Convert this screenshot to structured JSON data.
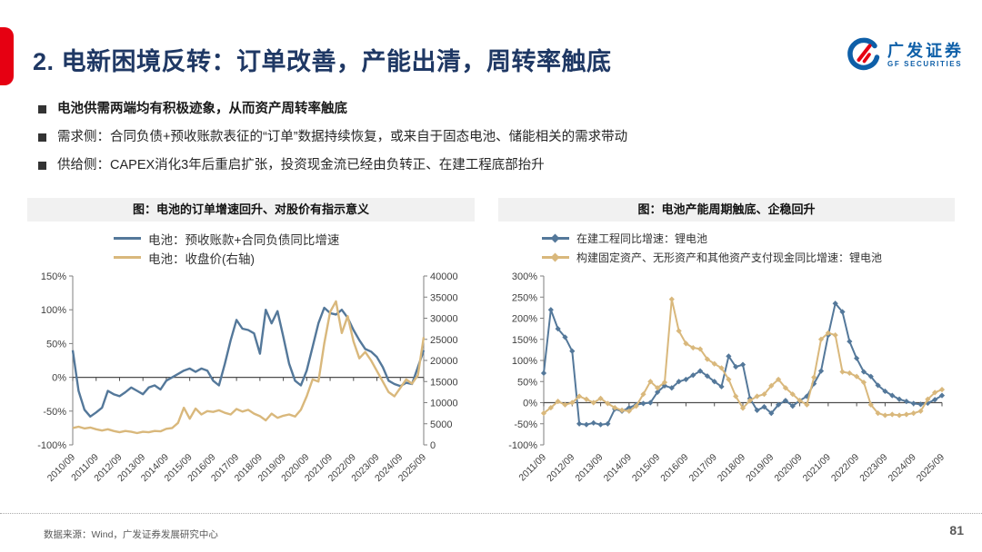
{
  "slide": {
    "title": "2. 电新困境反转：订单改善，产能出清，周转率触底",
    "page_number": "81",
    "source": "数据来源：Wind，广发证券发展研究中心"
  },
  "logo": {
    "cn": "广发证券",
    "en": "GF SECURITIES"
  },
  "bullets": [
    {
      "text": "电池供需两端均有积极迹象，从而资产周转率触底"
    },
    {
      "text": "需求侧：合同负债+预收账款表征的“订单”数据持续恢复，或来自于固态电池、储能相关的需求带动"
    },
    {
      "text": "供给侧：CAPEX消化3年后重启扩张，投资现金流已经由负转正、在建工程底部抬升"
    }
  ],
  "colors": {
    "accent_red": "#E60012",
    "title_blue": "#1F3864",
    "logo_blue": "#0E5FA8",
    "series_blue": "#54789A",
    "series_tan": "#D9B87C"
  },
  "chart_data": [
    {
      "type": "line",
      "title": "图：电池的订单增速回升、对股价有指示意义",
      "points_per_year": 4,
      "x_labels": [
        "2010/09",
        "2011/09",
        "2012/09",
        "2013/09",
        "2014/09",
        "2015/09",
        "2016/09",
        "2017/09",
        "2018/09",
        "2019/09",
        "2020/09",
        "2021/09",
        "2022/09",
        "2023/09",
        "2024/09",
        "2025/09"
      ],
      "left_axis": {
        "min": -100,
        "max": 150,
        "step": 50,
        "tick_labels": [
          "150%",
          "100%",
          "50%",
          "0%",
          "-50%",
          "-100%"
        ]
      },
      "right_axis": {
        "min": 0,
        "max": 40000,
        "step": 5000,
        "tick_labels": [
          "40000",
          "35000",
          "30000",
          "25000",
          "20000",
          "15000",
          "10000",
          "5000",
          "0"
        ]
      },
      "layout": {
        "margins": {
          "l": 50,
          "r": 56,
          "t": 8,
          "b": 62
        },
        "stroke": 2.4,
        "marker": false
      },
      "series": [
        {
          "name": "电池：预收账款+合同负债同比增速",
          "axis": "left",
          "color_key": "series_blue",
          "values": [
            40,
            -20,
            -48,
            -58,
            -52,
            -45,
            -20,
            -25,
            -28,
            -22,
            -15,
            -20,
            -25,
            -15,
            -12,
            -18,
            -5,
            0,
            5,
            10,
            13,
            8,
            13,
            10,
            -5,
            -12,
            20,
            55,
            85,
            72,
            70,
            65,
            35,
            100,
            80,
            98,
            60,
            20,
            -5,
            -12,
            10,
            45,
            80,
            103,
            95,
            93,
            100,
            88,
            70,
            55,
            42,
            38,
            30,
            15,
            -5,
            -10,
            -13,
            -8,
            -10,
            15,
            40
          ]
        },
        {
          "name": "电池：收盘价(右轴)",
          "axis": "right",
          "color_key": "series_tan",
          "values": [
            4000,
            4300,
            3900,
            4100,
            3700,
            3400,
            3700,
            3300,
            3000,
            3300,
            3100,
            2800,
            3100,
            3000,
            3300,
            3200,
            3800,
            4000,
            5200,
            8800,
            6200,
            8600,
            7200,
            8000,
            7800,
            8200,
            7600,
            7200,
            8500,
            7900,
            8300,
            7400,
            6800,
            5800,
            7400,
            6400,
            6900,
            7200,
            6700,
            8300,
            11500,
            15500,
            15000,
            24000,
            31500,
            34000,
            26500,
            30500,
            24500,
            20500,
            22000,
            20000,
            17500,
            15000,
            12500,
            11500,
            13500,
            15500,
            14500,
            16500,
            25500
          ]
        }
      ]
    },
    {
      "type": "line",
      "title": "图：电池产能周期触底、企稳回升",
      "points_per_year": 4,
      "x_labels": [
        "2011/09",
        "2012/09",
        "2013/09",
        "2014/09",
        "2015/09",
        "2016/09",
        "2017/09",
        "2018/09",
        "2019/09",
        "2020/09",
        "2021/09",
        "2022/09",
        "2023/09",
        "2024/09",
        "2025/09"
      ],
      "left_axis": {
        "min": -100,
        "max": 300,
        "step": 50,
        "tick_labels": [
          "300%",
          "250%",
          "200%",
          "150%",
          "100%",
          "50%",
          "0%",
          "-50%",
          "-100%"
        ]
      },
      "right_axis": null,
      "layout": {
        "margins": {
          "l": 50,
          "r": 14,
          "t": 8,
          "b": 62
        },
        "stroke": 2,
        "marker": true
      },
      "series": [
        {
          "name": "在建工程同比增速：锂电池",
          "axis": "left",
          "color_key": "series_blue",
          "values": [
            70,
            220,
            175,
            155,
            122,
            -50,
            -52,
            -48,
            -52,
            -50,
            -15,
            -20,
            -12,
            -5,
            -2,
            0,
            25,
            40,
            35,
            50,
            55,
            65,
            75,
            63,
            50,
            38,
            110,
            85,
            90,
            10,
            -18,
            -10,
            -25,
            -5,
            5,
            -8,
            5,
            15,
            45,
            75,
            160,
            235,
            215,
            145,
            105,
            73,
            62,
            41,
            27,
            17,
            8,
            3,
            -2,
            -4,
            -1,
            7,
            17
          ]
        },
        {
          "name": "构建固定资产、无形资产和其他资产支付现金同比增速：锂电池",
          "axis": "left",
          "color_key": "series_tan",
          "values": [
            -25,
            -12,
            3,
            -5,
            0,
            15,
            8,
            0,
            10,
            -2,
            -12,
            -18,
            -20,
            -8,
            20,
            50,
            35,
            48,
            245,
            170,
            140,
            130,
            127,
            103,
            92,
            82,
            55,
            15,
            -13,
            5,
            15,
            20,
            40,
            55,
            35,
            20,
            5,
            -5,
            60,
            150,
            165,
            160,
            73,
            70,
            62,
            48,
            -5,
            -25,
            -30,
            -28,
            -30,
            -28,
            -25,
            -20,
            8,
            24,
            31
          ]
        }
      ]
    }
  ]
}
